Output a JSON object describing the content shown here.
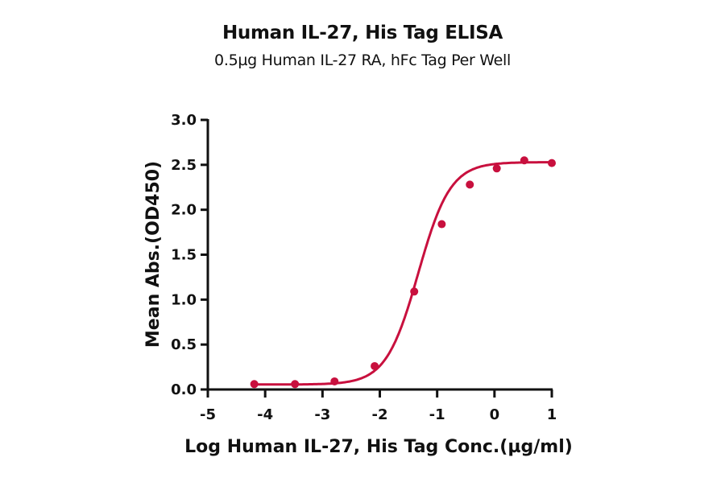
{
  "chart_data": {
    "type": "line",
    "title": "Human IL-27, His Tag ELISA",
    "subtitle": "0.5µg Human IL-27 RA, hFc Tag Per Well",
    "xlabel": "Log Human IL-27, His Tag Conc.(µg/ml)",
    "ylabel": "Mean Abs.(OD450)",
    "xlim": [
      -5,
      1
    ],
    "ylim": [
      0,
      3.0
    ],
    "x_ticks": [
      "-5",
      "-4",
      "-3",
      "-2",
      "-1",
      "0",
      "1"
    ],
    "y_ticks": [
      "0.0",
      "0.5",
      "1.0",
      "1.5",
      "2.0",
      "2.5",
      "3.0"
    ],
    "grid": false,
    "legend": null,
    "series": [
      {
        "name": "Human IL-27, His Tag",
        "color": "#c8103e",
        "marker": "circle",
        "fit": "4PL sigmoidal curve",
        "x": [
          -4.19,
          -3.48,
          -2.79,
          -2.09,
          -1.4,
          -0.92,
          -0.43,
          0.04,
          0.52,
          1.0
        ],
        "y": [
          0.06,
          0.06,
          0.09,
          0.26,
          1.09,
          1.84,
          2.28,
          2.46,
          2.55,
          2.52
        ]
      }
    ]
  }
}
